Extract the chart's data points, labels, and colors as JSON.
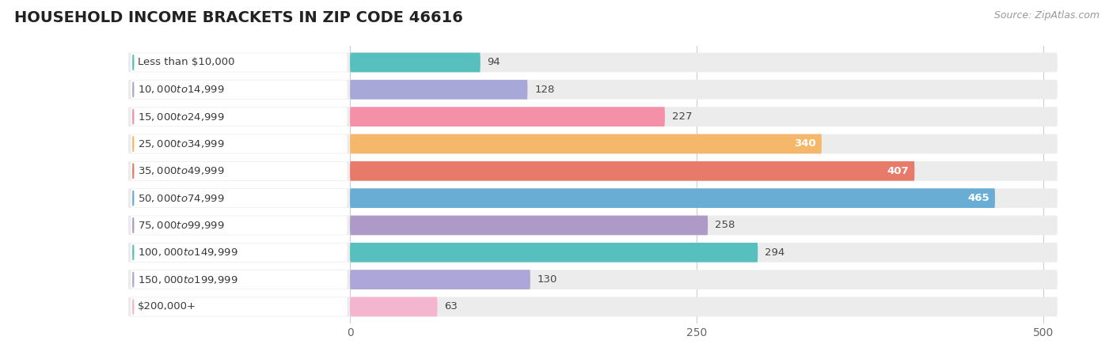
{
  "title": "HOUSEHOLD INCOME BRACKETS IN ZIP CODE 46616",
  "source": "Source: ZipAtlas.com",
  "categories": [
    "Less than $10,000",
    "$10,000 to $14,999",
    "$15,000 to $24,999",
    "$25,000 to $34,999",
    "$35,000 to $49,999",
    "$50,000 to $74,999",
    "$75,000 to $99,999",
    "$100,000 to $149,999",
    "$150,000 to $199,999",
    "$200,000+"
  ],
  "values": [
    94,
    128,
    227,
    340,
    407,
    465,
    258,
    294,
    130,
    63
  ],
  "bar_colors": [
    "#57BFBE",
    "#A8A8D8",
    "#F490A8",
    "#F5B86A",
    "#E87A6A",
    "#6AADD4",
    "#AE9AC6",
    "#57BFBE",
    "#ADA6D8",
    "#F4B5CE"
  ],
  "data_max": 500,
  "xticks": [
    0,
    250,
    500
  ],
  "title_fontsize": 14,
  "label_fontsize": 9.5,
  "value_fontsize": 9.5,
  "source_fontsize": 9,
  "inside_threshold": 300
}
